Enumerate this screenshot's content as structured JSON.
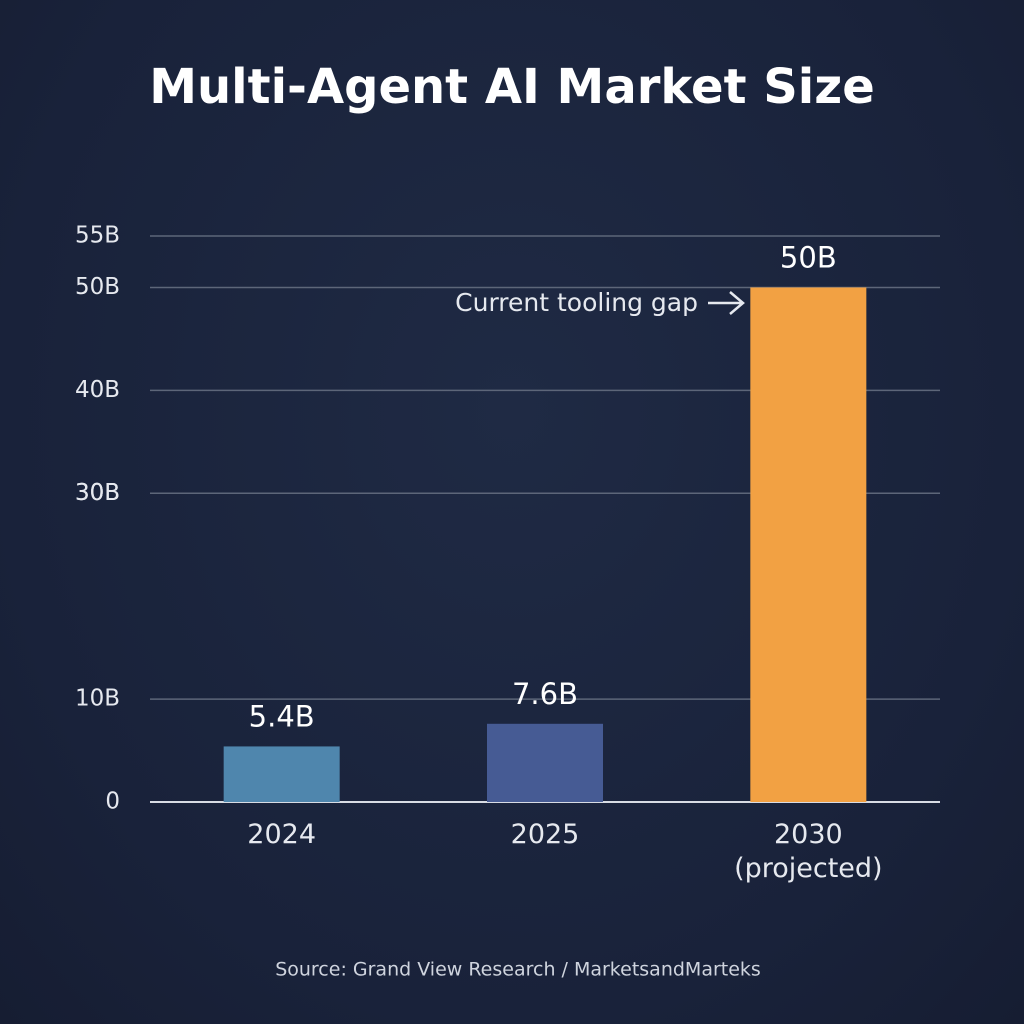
{
  "chart_data": {
    "type": "bar",
    "title": "Multi-Agent AI Market Size",
    "categories": [
      "2024",
      "2025",
      "2030 (projected)"
    ],
    "values": [
      5.4,
      7.6,
      50
    ],
    "value_labels": [
      "5.4B",
      "7.6B",
      "50B"
    ],
    "colors": [
      "#4f86ad",
      "#465b94",
      "#f2a143"
    ],
    "ylim": [
      0,
      55
    ],
    "yticks": [
      0,
      {
        "value": 10,
        "label": "10B"
      },
      {
        "value": 40,
        "label": "40B"
      },
      {
        "value": 30,
        "label": "30B"
      },
      {
        "value": 30,
        "label": "30B"
      },
      {
        "value": 50,
        "label": "50B"
      },
      {
        "value": 55,
        "label": "55B"
      }
    ],
    "grid": true,
    "annotation": "Current tooling gap",
    "source": "Source: Grand View Research / MarketsandMarteks"
  }
}
